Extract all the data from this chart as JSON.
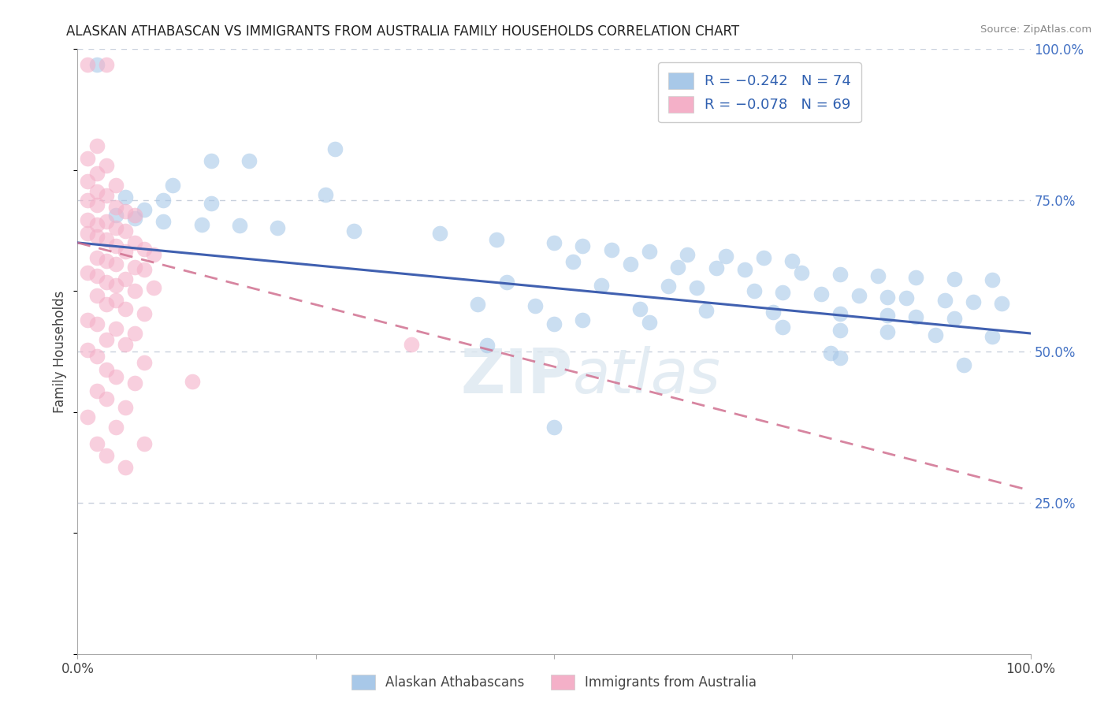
{
  "title": "ALASKAN ATHABASCAN VS IMMIGRANTS FROM AUSTRALIA FAMILY HOUSEHOLDS CORRELATION CHART",
  "source_text": "Source: ZipAtlas.com",
  "ylabel": "Family Households",
  "xlim": [
    0.0,
    1.0
  ],
  "ylim": [
    0.0,
    1.0
  ],
  "xtick_labels": [
    "0.0%",
    "",
    "",
    "",
    "100.0%"
  ],
  "ytick_right_labels": [
    "25.0%",
    "50.0%",
    "75.0%",
    "100.0%"
  ],
  "ytick_right_vals": [
    0.25,
    0.5,
    0.75,
    1.0
  ],
  "grid_color": "#c8d0dc",
  "background_color": "#ffffff",
  "title_fontsize": 12,
  "blue_scatter": [
    [
      0.02,
      0.975
    ],
    [
      0.27,
      0.835
    ],
    [
      0.14,
      0.815
    ],
    [
      0.18,
      0.815
    ],
    [
      0.1,
      0.775
    ],
    [
      0.26,
      0.76
    ],
    [
      0.05,
      0.755
    ],
    [
      0.09,
      0.75
    ],
    [
      0.14,
      0.745
    ],
    [
      0.07,
      0.735
    ],
    [
      0.04,
      0.725
    ],
    [
      0.06,
      0.72
    ],
    [
      0.09,
      0.715
    ],
    [
      0.13,
      0.71
    ],
    [
      0.17,
      0.708
    ],
    [
      0.21,
      0.705
    ],
    [
      0.29,
      0.7
    ],
    [
      0.38,
      0.695
    ],
    [
      0.44,
      0.685
    ],
    [
      0.5,
      0.68
    ],
    [
      0.53,
      0.675
    ],
    [
      0.56,
      0.668
    ],
    [
      0.6,
      0.665
    ],
    [
      0.64,
      0.66
    ],
    [
      0.68,
      0.658
    ],
    [
      0.72,
      0.655
    ],
    [
      0.75,
      0.65
    ],
    [
      0.52,
      0.648
    ],
    [
      0.58,
      0.645
    ],
    [
      0.63,
      0.64
    ],
    [
      0.67,
      0.638
    ],
    [
      0.7,
      0.635
    ],
    [
      0.76,
      0.63
    ],
    [
      0.8,
      0.628
    ],
    [
      0.84,
      0.625
    ],
    [
      0.88,
      0.622
    ],
    [
      0.92,
      0.62
    ],
    [
      0.96,
      0.618
    ],
    [
      0.45,
      0.615
    ],
    [
      0.55,
      0.61
    ],
    [
      0.62,
      0.608
    ],
    [
      0.65,
      0.605
    ],
    [
      0.71,
      0.6
    ],
    [
      0.74,
      0.598
    ],
    [
      0.78,
      0.595
    ],
    [
      0.82,
      0.592
    ],
    [
      0.85,
      0.59
    ],
    [
      0.87,
      0.588
    ],
    [
      0.91,
      0.585
    ],
    [
      0.94,
      0.582
    ],
    [
      0.97,
      0.58
    ],
    [
      0.42,
      0.578
    ],
    [
      0.48,
      0.575
    ],
    [
      0.59,
      0.57
    ],
    [
      0.66,
      0.568
    ],
    [
      0.73,
      0.565
    ],
    [
      0.8,
      0.562
    ],
    [
      0.85,
      0.56
    ],
    [
      0.88,
      0.558
    ],
    [
      0.92,
      0.555
    ],
    [
      0.53,
      0.552
    ],
    [
      0.6,
      0.548
    ],
    [
      0.5,
      0.545
    ],
    [
      0.74,
      0.54
    ],
    [
      0.8,
      0.535
    ],
    [
      0.85,
      0.532
    ],
    [
      0.9,
      0.528
    ],
    [
      0.96,
      0.525
    ],
    [
      0.43,
      0.51
    ],
    [
      0.79,
      0.498
    ],
    [
      0.8,
      0.49
    ],
    [
      0.93,
      0.478
    ],
    [
      0.5,
      0.375
    ]
  ],
  "pink_scatter": [
    [
      0.01,
      0.975
    ],
    [
      0.03,
      0.975
    ],
    [
      0.02,
      0.84
    ],
    [
      0.01,
      0.82
    ],
    [
      0.03,
      0.808
    ],
    [
      0.02,
      0.795
    ],
    [
      0.01,
      0.782
    ],
    [
      0.04,
      0.775
    ],
    [
      0.02,
      0.765
    ],
    [
      0.03,
      0.758
    ],
    [
      0.01,
      0.75
    ],
    [
      0.02,
      0.742
    ],
    [
      0.04,
      0.738
    ],
    [
      0.05,
      0.732
    ],
    [
      0.06,
      0.725
    ],
    [
      0.01,
      0.718
    ],
    [
      0.03,
      0.715
    ],
    [
      0.02,
      0.71
    ],
    [
      0.04,
      0.705
    ],
    [
      0.05,
      0.7
    ],
    [
      0.01,
      0.695
    ],
    [
      0.02,
      0.69
    ],
    [
      0.03,
      0.685
    ],
    [
      0.06,
      0.68
    ],
    [
      0.04,
      0.675
    ],
    [
      0.07,
      0.67
    ],
    [
      0.05,
      0.665
    ],
    [
      0.08,
      0.66
    ],
    [
      0.02,
      0.655
    ],
    [
      0.03,
      0.65
    ],
    [
      0.04,
      0.645
    ],
    [
      0.06,
      0.64
    ],
    [
      0.07,
      0.635
    ],
    [
      0.01,
      0.63
    ],
    [
      0.02,
      0.625
    ],
    [
      0.05,
      0.62
    ],
    [
      0.03,
      0.615
    ],
    [
      0.04,
      0.61
    ],
    [
      0.08,
      0.605
    ],
    [
      0.06,
      0.6
    ],
    [
      0.02,
      0.592
    ],
    [
      0.04,
      0.585
    ],
    [
      0.03,
      0.578
    ],
    [
      0.05,
      0.57
    ],
    [
      0.07,
      0.562
    ],
    [
      0.01,
      0.552
    ],
    [
      0.02,
      0.545
    ],
    [
      0.04,
      0.538
    ],
    [
      0.06,
      0.53
    ],
    [
      0.03,
      0.52
    ],
    [
      0.05,
      0.512
    ],
    [
      0.01,
      0.502
    ],
    [
      0.02,
      0.492
    ],
    [
      0.07,
      0.482
    ],
    [
      0.03,
      0.47
    ],
    [
      0.04,
      0.458
    ],
    [
      0.06,
      0.448
    ],
    [
      0.02,
      0.435
    ],
    [
      0.03,
      0.422
    ],
    [
      0.05,
      0.408
    ],
    [
      0.01,
      0.392
    ],
    [
      0.04,
      0.375
    ],
    [
      0.02,
      0.348
    ],
    [
      0.07,
      0.348
    ],
    [
      0.03,
      0.328
    ],
    [
      0.05,
      0.308
    ],
    [
      0.35,
      0.512
    ],
    [
      0.12,
      0.45
    ]
  ],
  "blue_line_x": [
    0.0,
    1.0
  ],
  "blue_line_y": [
    0.68,
    0.53
  ],
  "pink_line_x": [
    0.0,
    1.0
  ],
  "pink_line_y": [
    0.68,
    0.27
  ],
  "blue_dot_color": "#a8c8e8",
  "pink_dot_color": "#f4b0c8",
  "blue_line_color": "#4060b0",
  "pink_line_color": "#d07090",
  "legend_blue_label": "R = −0.242   N = 74",
  "legend_pink_label": "R = −0.078   N = 69",
  "legend_r_color": "#3060b0",
  "bottom_label_blue": "Alaskan Athabascans",
  "bottom_label_pink": "Immigrants from Australia",
  "watermark": "ZIPatlas"
}
